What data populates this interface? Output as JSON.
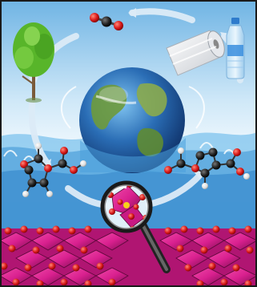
{
  "figure": {
    "kind": "illustration",
    "colors": {
      "frame": "#1a1a1a",
      "sky_top": "#8fc9ec",
      "sky_light": "#eef7fd",
      "water_deep": "#4a9fd8",
      "water_mid": "#a9d6f2",
      "crystal_magenta": "#d9208f",
      "crystal_dark": "#8a0f5a",
      "oxygen_red": "#d81818",
      "carbon_black": "#1f1f1f",
      "hydrogen_white": "#f2f2f2",
      "arrow_blue": "#cde3f5",
      "tree_green": "#58b52a",
      "ocean_blue": "#2c6fb5",
      "land_green": "#6e9a3b"
    }
  }
}
